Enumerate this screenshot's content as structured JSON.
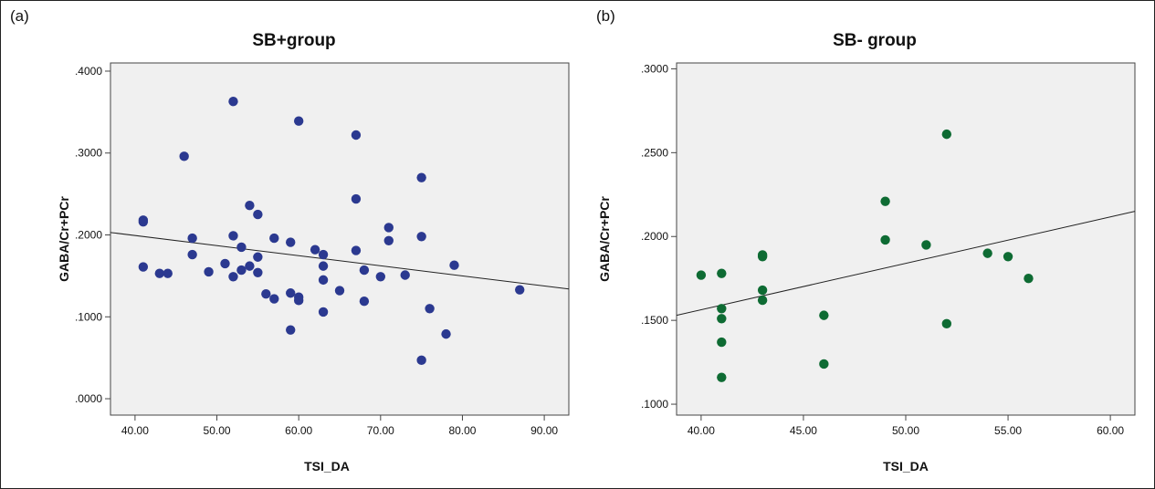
{
  "chart_data": [
    {
      "panel_label": "(a)",
      "type": "scatter",
      "title": "SB+group",
      "xlabel": "TSI_DA",
      "ylabel": "GABA/Cr+PCr",
      "xlim": [
        37,
        93
      ],
      "ylim": [
        -0.02,
        0.41
      ],
      "x_ticks": [
        "40.00",
        "50.00",
        "60.00",
        "70.00",
        "80.00",
        "90.00"
      ],
      "x_tick_values": [
        40,
        50,
        60,
        70,
        80,
        90
      ],
      "y_ticks": [
        ".0000",
        ".1000",
        ".2000",
        ".3000",
        ".4000"
      ],
      "y_tick_values": [
        0,
        0.1,
        0.2,
        0.3,
        0.4
      ],
      "color": "#2b3990",
      "points": [
        [
          41,
          0.218
        ],
        [
          41,
          0.216
        ],
        [
          41,
          0.161
        ],
        [
          43,
          0.153
        ],
        [
          44,
          0.153
        ],
        [
          46,
          0.296
        ],
        [
          47,
          0.196
        ],
        [
          47,
          0.176
        ],
        [
          49,
          0.155
        ],
        [
          51,
          0.165
        ],
        [
          52,
          0.363
        ],
        [
          52,
          0.199
        ],
        [
          52,
          0.149
        ],
        [
          53,
          0.185
        ],
        [
          53,
          0.157
        ],
        [
          54,
          0.236
        ],
        [
          54,
          0.162
        ],
        [
          55,
          0.225
        ],
        [
          55,
          0.173
        ],
        [
          55,
          0.154
        ],
        [
          56,
          0.128
        ],
        [
          57,
          0.196
        ],
        [
          57,
          0.122
        ],
        [
          59,
          0.191
        ],
        [
          59,
          0.129
        ],
        [
          59,
          0.084
        ],
        [
          60,
          0.339
        ],
        [
          60,
          0.124
        ],
        [
          60,
          0.12
        ],
        [
          62,
          0.182
        ],
        [
          63,
          0.176
        ],
        [
          63,
          0.162
        ],
        [
          63,
          0.145
        ],
        [
          63,
          0.106
        ],
        [
          65,
          0.132
        ],
        [
          67,
          0.322
        ],
        [
          67,
          0.244
        ],
        [
          67,
          0.181
        ],
        [
          68,
          0.157
        ],
        [
          68,
          0.119
        ],
        [
          70,
          0.149
        ],
        [
          71,
          0.209
        ],
        [
          71,
          0.193
        ],
        [
          73,
          0.151
        ],
        [
          75,
          0.27
        ],
        [
          75,
          0.198
        ],
        [
          75,
          0.047
        ],
        [
          76,
          0.11
        ],
        [
          78,
          0.079
        ],
        [
          79,
          0.163
        ],
        [
          87,
          0.133
        ]
      ],
      "fit_line": {
        "x": [
          37,
          93
        ],
        "y": [
          0.203,
          0.134
        ]
      }
    },
    {
      "panel_label": "(b)",
      "type": "scatter",
      "title": "SB- group",
      "xlabel": "TSI_DA",
      "ylabel": "GABA/Cr+PCr",
      "xlim": [
        38.8,
        61.2
      ],
      "ylim": [
        0.0935,
        0.3035
      ],
      "x_ticks": [
        "40.00",
        "45.00",
        "50.00",
        "55.00",
        "60.00"
      ],
      "x_tick_values": [
        40,
        45,
        50,
        55,
        60
      ],
      "y_ticks": [
        ".1000",
        ".1500",
        ".2000",
        ".2500",
        ".3000"
      ],
      "y_tick_values": [
        0.1,
        0.15,
        0.2,
        0.25,
        0.3
      ],
      "color": "#0e6b33",
      "points": [
        [
          40,
          0.177
        ],
        [
          41,
          0.178
        ],
        [
          41,
          0.157
        ],
        [
          41,
          0.151
        ],
        [
          41,
          0.137
        ],
        [
          41,
          0.116
        ],
        [
          43,
          0.189
        ],
        [
          43,
          0.188
        ],
        [
          43,
          0.168
        ],
        [
          43,
          0.162
        ],
        [
          46,
          0.153
        ],
        [
          46,
          0.124
        ],
        [
          49,
          0.221
        ],
        [
          49,
          0.198
        ],
        [
          51,
          0.195
        ],
        [
          52,
          0.261
        ],
        [
          52,
          0.148
        ],
        [
          54,
          0.19
        ],
        [
          55,
          0.188
        ],
        [
          56,
          0.175
        ]
      ],
      "fit_line": {
        "x": [
          38.8,
          61.2
        ],
        "y": [
          0.153,
          0.215
        ]
      }
    }
  ]
}
